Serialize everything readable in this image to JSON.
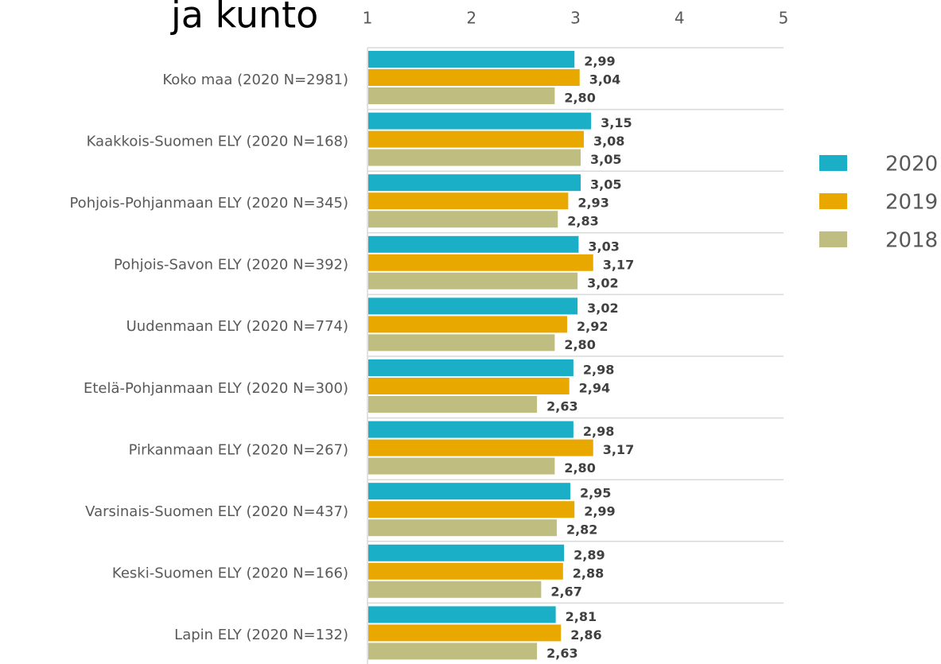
{
  "chart_data": {
    "type": "bar",
    "orientation": "horizontal",
    "title": "ja kunto",
    "categories": [
      "Koko maa (2020 N=2981)",
      "Kaakkois-Suomen ELY (2020 N=168)",
      "Pohjois-Pohjanmaan ELY (2020 N=345)",
      "Pohjois-Savon ELY (2020 N=392)",
      "Uudenmaan ELY (2020 N=774)",
      "Etelä-Pohjanmaan ELY (2020 N=300)",
      "Pirkanmaan ELY (2020 N=267)",
      "Varsinais-Suomen ELY (2020 N=437)",
      "Keski-Suomen ELY (2020 N=166)",
      "Lapin ELY (2020 N=132)"
    ],
    "series": [
      {
        "name": "2020",
        "color": "#1aafc6",
        "values": [
          2.99,
          3.15,
          3.05,
          3.03,
          3.02,
          2.98,
          2.98,
          2.95,
          2.89,
          2.81
        ],
        "value_labels": [
          "2,99",
          "3,15",
          "3,05",
          "3,03",
          "3,02",
          "2,98",
          "2,98",
          "2,95",
          "2,89",
          "2,81"
        ]
      },
      {
        "name": "2019",
        "color": "#e8a800",
        "values": [
          3.04,
          3.08,
          2.93,
          3.17,
          2.92,
          2.94,
          3.17,
          2.99,
          2.88,
          2.86
        ],
        "value_labels": [
          "3,04",
          "3,08",
          "2,93",
          "3,17",
          "2,92",
          "2,94",
          "3,17",
          "2,99",
          "2,88",
          "2,86"
        ]
      },
      {
        "name": "2018",
        "color": "#bfbd80",
        "values": [
          2.8,
          3.05,
          2.83,
          3.02,
          2.8,
          2.63,
          2.8,
          2.82,
          2.67,
          2.63
        ],
        "value_labels": [
          "2,80",
          "3,05",
          "2,83",
          "3,02",
          "2,80",
          "2,63",
          "2,80",
          "2,82",
          "2,67",
          "2,63"
        ]
      }
    ],
    "xlim": [
      1,
      5
    ],
    "xticks": [
      1,
      2,
      3,
      4,
      5
    ],
    "legend": "right"
  }
}
